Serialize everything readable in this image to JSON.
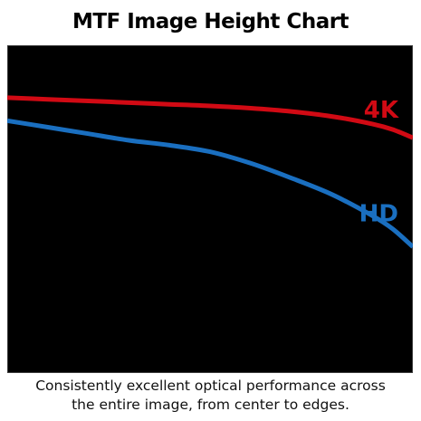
{
  "title": "MTF Image Height Chart",
  "caption": {
    "line1": "Consistently excellent optical performance across",
    "line2": "the entire image, from center to edges."
  },
  "colors": {
    "background": "#000000",
    "series_4k": "#d10a14",
    "series_hd": "#1a6fc0"
  },
  "chart_data": {
    "type": "line",
    "title": "MTF Image Height Chart",
    "xlabel": "",
    "ylabel": "",
    "xlim": [
      0,
      1
    ],
    "ylim": [
      0,
      1
    ],
    "grid": false,
    "legend": "inline-right",
    "series": [
      {
        "name": "4K",
        "color": "#d10a14",
        "x": [
          0,
          0.1,
          0.2,
          0.3,
          0.4,
          0.5,
          0.6,
          0.7,
          0.8,
          0.9,
          0.95,
          1.0
        ],
        "values": [
          0.84,
          0.835,
          0.83,
          0.825,
          0.82,
          0.815,
          0.808,
          0.798,
          0.783,
          0.76,
          0.743,
          0.718
        ]
      },
      {
        "name": "HD",
        "color": "#1a6fc0",
        "x": [
          0,
          0.1,
          0.2,
          0.3,
          0.4,
          0.5,
          0.6,
          0.7,
          0.8,
          0.9,
          0.95,
          1.0
        ],
        "values": [
          0.77,
          0.75,
          0.73,
          0.71,
          0.695,
          0.675,
          0.64,
          0.595,
          0.545,
          0.48,
          0.44,
          0.385
        ]
      }
    ]
  }
}
